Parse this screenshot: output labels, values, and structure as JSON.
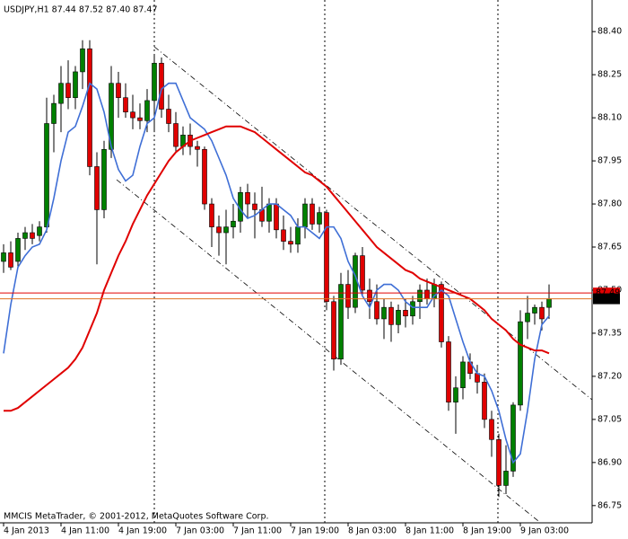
{
  "chart_data": {
    "type": "candlestick",
    "title": "USDJPY,H1  87.44 87.52 87.40 87.47",
    "footer": "MMCIS MetaTrader, © 2001-2012, MetaQuotes Software Corp.",
    "categories": [
      "4 Jan 2013",
      null,
      null,
      null,
      null,
      null,
      null,
      null,
      "4 Jan 11:00",
      null,
      null,
      null,
      null,
      null,
      null,
      null,
      "4 Jan 19:00",
      null,
      null,
      null,
      null,
      null,
      null,
      null,
      "7 Jan 03:00",
      null,
      null,
      null,
      null,
      null,
      null,
      null,
      "7 Jan 11:00",
      null,
      null,
      null,
      null,
      null,
      null,
      null,
      "7 Jan 19:00",
      null,
      null,
      null,
      null,
      null,
      null,
      null,
      "8 Jan 03:00",
      null,
      null,
      null,
      null,
      null,
      null,
      null,
      "8 Jan 11:00",
      null,
      null,
      null,
      null,
      null,
      null,
      null,
      "8 Jan 19:00",
      null,
      null,
      null,
      null,
      null,
      null,
      null,
      "9 Jan 03:00",
      null,
      null,
      null,
      null
    ],
    "open": [
      87.6,
      87.63,
      87.6,
      87.68,
      87.7,
      87.69,
      87.72,
      88.08,
      88.15,
      88.22,
      88.17,
      88.26,
      88.34,
      87.93,
      87.78,
      87.99,
      88.22,
      88.17,
      88.12,
      88.1,
      88.09,
      88.16,
      88.29,
      88.13,
      88.08,
      88.0,
      88.04,
      88.0,
      87.99,
      87.8,
      87.72,
      87.7,
      87.72,
      87.74,
      87.84,
      87.8,
      87.78,
      87.74,
      87.8,
      87.71,
      87.67,
      87.66,
      87.72,
      87.8,
      87.73,
      87.77,
      87.46,
      87.26,
      87.52,
      87.44,
      87.62,
      87.5,
      87.46,
      87.4,
      87.44,
      87.38,
      87.43,
      87.41,
      87.46,
      87.5,
      87.47,
      87.52,
      87.32,
      87.11,
      87.16,
      87.25,
      87.21,
      87.18,
      87.05,
      86.98,
      86.82,
      86.87,
      87.1,
      87.39,
      87.42,
      87.44,
      87.44
    ],
    "high": [
      87.66,
      87.67,
      87.7,
      87.72,
      87.73,
      87.74,
      88.17,
      88.18,
      88.28,
      88.3,
      88.28,
      88.37,
      88.37,
      87.98,
      88.02,
      88.28,
      88.26,
      88.22,
      88.18,
      88.15,
      88.2,
      88.32,
      88.31,
      88.18,
      88.12,
      88.07,
      88.08,
      88.02,
      88.0,
      87.82,
      87.76,
      87.78,
      87.8,
      87.86,
      87.87,
      87.84,
      87.86,
      87.82,
      87.82,
      87.76,
      87.72,
      87.75,
      87.82,
      87.82,
      87.79,
      87.78,
      87.48,
      87.56,
      87.57,
      87.63,
      87.65,
      87.54,
      87.52,
      87.47,
      87.46,
      87.45,
      87.47,
      87.48,
      87.52,
      87.54,
      87.54,
      87.53,
      87.34,
      87.2,
      87.27,
      87.28,
      87.24,
      87.21,
      87.08,
      87.0,
      86.96,
      87.11,
      87.43,
      87.48,
      87.45,
      87.46,
      87.52
    ],
    "low": [
      87.56,
      87.57,
      87.58,
      87.64,
      87.66,
      87.67,
      87.7,
      87.98,
      88.05,
      88.13,
      88.13,
      88.2,
      87.9,
      87.59,
      87.75,
      87.96,
      88.1,
      88.1,
      88.06,
      88.06,
      88.05,
      88.05,
      88.1,
      88.05,
      87.98,
      87.97,
      87.97,
      87.93,
      87.78,
      87.65,
      87.62,
      87.59,
      87.68,
      87.7,
      87.75,
      87.68,
      87.72,
      87.7,
      87.68,
      87.64,
      87.63,
      87.63,
      87.68,
      87.71,
      87.7,
      87.43,
      87.22,
      87.24,
      87.4,
      87.42,
      87.48,
      87.4,
      87.38,
      87.33,
      87.32,
      87.35,
      87.37,
      87.38,
      87.4,
      87.45,
      87.44,
      87.3,
      87.08,
      87.0,
      87.12,
      87.19,
      87.14,
      87.02,
      86.92,
      86.78,
      86.79,
      86.85,
      87.08,
      87.33,
      87.38,
      87.36,
      87.4
    ],
    "close": [
      87.63,
      87.58,
      87.68,
      87.7,
      87.68,
      87.72,
      88.08,
      88.15,
      88.22,
      88.17,
      88.26,
      88.34,
      87.93,
      87.78,
      87.99,
      88.22,
      88.17,
      88.12,
      88.1,
      88.09,
      88.16,
      88.29,
      88.13,
      88.08,
      88.0,
      88.04,
      88.0,
      87.99,
      87.8,
      87.72,
      87.7,
      87.72,
      87.74,
      87.84,
      87.8,
      87.78,
      87.74,
      87.8,
      87.71,
      87.67,
      87.66,
      87.72,
      87.8,
      87.73,
      87.77,
      87.46,
      87.26,
      87.52,
      87.44,
      87.62,
      87.5,
      87.46,
      87.4,
      87.44,
      87.38,
      87.43,
      87.41,
      87.46,
      87.5,
      87.47,
      87.52,
      87.32,
      87.11,
      87.16,
      87.25,
      87.21,
      87.18,
      87.05,
      86.98,
      86.82,
      86.87,
      87.1,
      87.39,
      87.42,
      87.44,
      87.4,
      87.47
    ],
    "up_color": "#008000",
    "down_color": "#e00000",
    "wick_color": "#000000",
    "lines": [
      {
        "color": "#3f6fd6",
        "values": [
          87.28,
          87.45,
          87.58,
          87.62,
          87.65,
          87.66,
          87.71,
          87.82,
          87.95,
          88.05,
          88.07,
          88.14,
          88.22,
          88.2,
          88.12,
          88.0,
          87.92,
          87.88,
          87.9,
          88.0,
          88.08,
          88.1,
          88.2,
          88.22,
          88.22,
          88.16,
          88.1,
          88.08,
          88.06,
          88.02,
          87.96,
          87.9,
          87.82,
          87.78,
          87.75,
          87.76,
          87.78,
          87.8,
          87.8,
          87.78,
          87.76,
          87.72,
          87.72,
          87.7,
          87.68,
          87.72,
          87.72,
          87.68,
          87.6,
          87.55,
          87.48,
          87.44,
          87.5,
          87.52,
          87.52,
          87.5,
          87.46,
          87.44,
          87.44,
          87.44,
          87.48,
          87.5,
          87.48,
          87.4,
          87.32,
          87.25,
          87.21,
          87.2,
          87.15,
          87.08,
          86.98,
          86.9,
          86.93,
          87.08,
          87.26,
          87.38,
          87.41
        ]
      },
      {
        "color": "#e00000",
        "values": [
          87.08,
          87.08,
          87.09,
          87.11,
          87.13,
          87.15,
          87.17,
          87.19,
          87.21,
          87.23,
          87.26,
          87.3,
          87.36,
          87.42,
          87.5,
          87.56,
          87.62,
          87.67,
          87.73,
          87.78,
          87.83,
          87.87,
          87.91,
          87.95,
          87.98,
          88.0,
          88.02,
          88.03,
          88.04,
          88.05,
          88.06,
          88.07,
          88.07,
          88.07,
          88.06,
          88.05,
          88.03,
          88.01,
          87.99,
          87.97,
          87.95,
          87.93,
          87.91,
          87.9,
          87.88,
          87.86,
          87.83,
          87.8,
          87.77,
          87.74,
          87.71,
          87.68,
          87.65,
          87.63,
          87.61,
          87.59,
          87.57,
          87.56,
          87.54,
          87.53,
          87.52,
          87.51,
          87.5,
          87.49,
          87.48,
          87.47,
          87.45,
          87.43,
          87.4,
          87.38,
          87.36,
          87.33,
          87.31,
          87.3,
          87.29,
          87.29,
          87.28
        ]
      }
    ],
    "price_lines": [
      {
        "value": 87.49,
        "label": "87.49",
        "color": "#e00000"
      },
      {
        "value": 87.47,
        "label": "87.47",
        "color": "#e07020"
      }
    ],
    "ylim": [
      86.69,
      88.51
    ],
    "yticks": [
      {
        "value": 88.4,
        "label": "88.40"
      },
      {
        "value": 88.25,
        "label": "88.25"
      },
      {
        "value": 88.1,
        "label": "88.10"
      },
      {
        "value": 87.95,
        "label": "87.95"
      },
      {
        "value": 87.8,
        "label": "87.80"
      },
      {
        "value": 87.65,
        "label": "87.65"
      },
      {
        "value": 87.5,
        "label": "87.50"
      },
      {
        "value": 87.35,
        "label": "87.35"
      },
      {
        "value": 87.2,
        "label": "87.20"
      },
      {
        "value": 87.05,
        "label": "87.05"
      },
      {
        "value": 86.9,
        "label": "86.90"
      },
      {
        "value": 86.75,
        "label": "86.75"
      }
    ]
  }
}
